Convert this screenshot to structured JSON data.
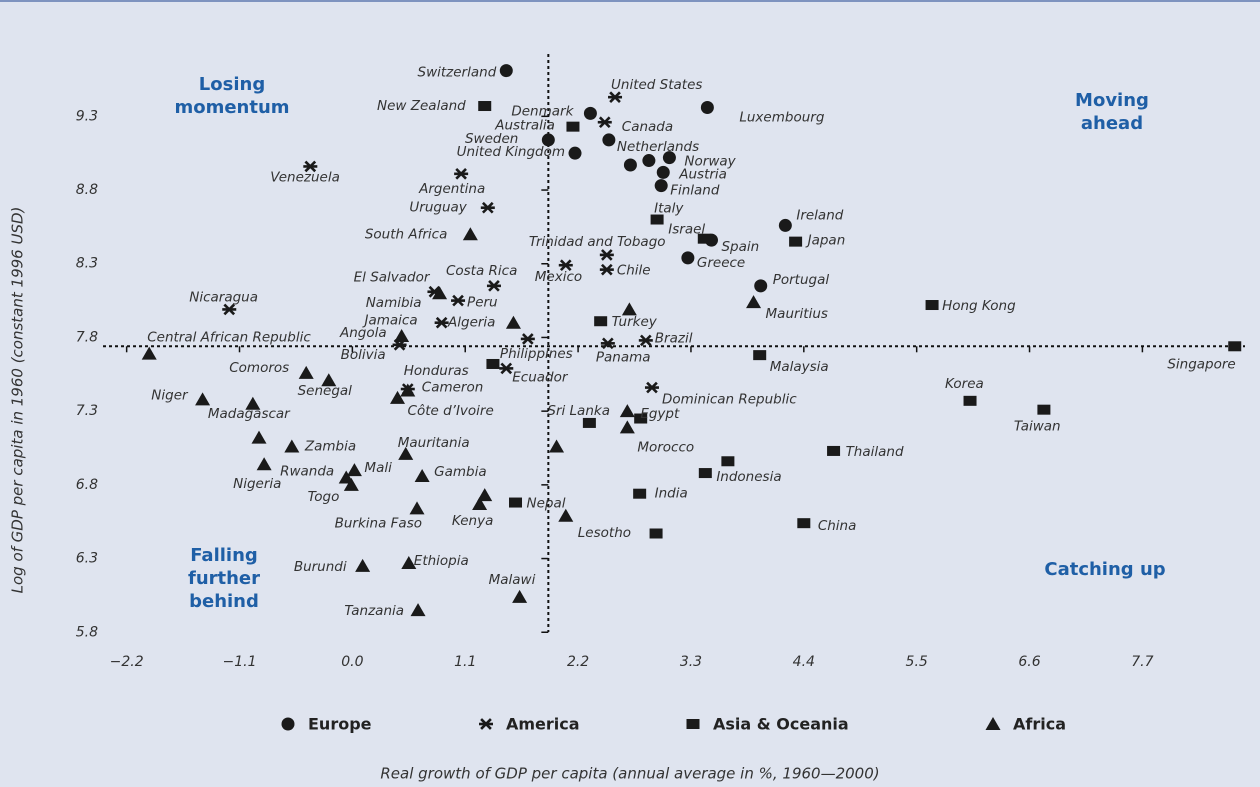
{
  "chart_data": {
    "type": "scatter",
    "xlabel": "Real growth of GDP per capita (annual average in %, 1960—2000)",
    "ylabel": "Log of GDP per capita in 1960 (constant 1996 USD)",
    "xlim": [
      -2.45,
      8.7
    ],
    "ylim": [
      5.7,
      9.75
    ],
    "xticks": [
      {
        "value": -2.2,
        "label": "−2.2"
      },
      {
        "value": -1.1,
        "label": "−1.1"
      },
      {
        "value": 0,
        "label": "0.0"
      },
      1.1,
      2.2,
      3.3,
      4.4,
      5.5,
      6.6,
      7.7
    ],
    "yticks": [
      5.8,
      6.3,
      6.8,
      7.3,
      7.8,
      8.3,
      8.8,
      9.3
    ],
    "reference_lines": {
      "x": 1.91,
      "y": 7.74
    },
    "annotations": [
      {
        "text": [
          "Losing",
          "momentum"
        ]
      },
      {
        "text": [
          "Moving",
          "ahead"
        ]
      },
      {
        "text": [
          "Falling",
          "further",
          "behind"
        ]
      },
      {
        "text": [
          "Catching up"
        ]
      }
    ],
    "series": [
      {
        "name": "Europe",
        "marker": "circle",
        "color": "#1a1a1a",
        "labels": [
          "Switzerland",
          "Luxembourg",
          "Denmark",
          "Sweden",
          "United Kingdom",
          "Netherlands",
          "Norway",
          "Austria",
          "Finland",
          null,
          null,
          "Ireland",
          "Spain",
          "Greece",
          "Portugal"
        ],
        "x": [
          1.5,
          3.46,
          2.32,
          1.91,
          2.17,
          2.5,
          3.09,
          3.03,
          3.01,
          2.71,
          2.89,
          4.22,
          3.5,
          3.27,
          3.98
        ],
        "values": [
          9.61,
          9.36,
          9.32,
          9.14,
          9.05,
          9.14,
          9.02,
          8.92,
          8.83,
          8.97,
          9.0,
          8.56,
          8.46,
          8.34,
          8.15
        ]
      },
      {
        "name": "America",
        "marker": "asterisk",
        "color": "#1a1a1a",
        "labels": [
          "United States",
          "Canada",
          "Venezuela",
          "Argentina",
          "Uruguay",
          "Trinidad and Tobago",
          "Mexico",
          "Chile",
          "Costa Rica",
          "El Salvador",
          "Peru",
          "Nicaragua",
          "Jamaica",
          null,
          "Bolivia",
          "Panama",
          "Brazil",
          "Ecuador",
          "Honduras",
          "Dominican Republic"
        ],
        "x": [
          2.56,
          2.46,
          -0.41,
          1.06,
          1.32,
          2.48,
          2.08,
          2.48,
          1.38,
          0.8,
          1.03,
          -1.2,
          0.87,
          1.71,
          0.46,
          2.49,
          2.86,
          1.5,
          0.54,
          2.92
        ],
        "values": [
          9.43,
          9.26,
          8.96,
          8.91,
          8.68,
          8.36,
          8.29,
          8.26,
          8.15,
          8.11,
          8.05,
          7.99,
          7.9,
          7.79,
          7.75,
          7.76,
          7.78,
          7.59,
          7.45,
          7.46
        ]
      },
      {
        "name": "Asia & Oceania",
        "marker": "square",
        "color": "#1a1a1a",
        "labels": [
          "New Zealand",
          "Australia",
          "Italy",
          "Israel",
          "Japan",
          "Hong Kong",
          "Turkey",
          "Malaysia",
          "Singapore",
          "Philippines",
          "Korea",
          "Taiwan",
          "Sri Lanka",
          null,
          "Thailand",
          null,
          "Indonesia",
          "India",
          "Nepal",
          "China",
          null
        ],
        "x": [
          1.29,
          2.15,
          2.97,
          3.43,
          4.32,
          5.65,
          2.42,
          3.97,
          8.6,
          1.37,
          6.02,
          6.74,
          2.31,
          2.81,
          4.69,
          3.66,
          3.44,
          2.8,
          1.59,
          4.4,
          2.96
        ],
        "values": [
          9.37,
          9.23,
          8.6,
          8.47,
          8.45,
          8.02,
          7.91,
          7.68,
          7.74,
          7.62,
          7.37,
          7.31,
          7.22,
          7.25,
          7.03,
          6.96,
          6.88,
          6.74,
          6.68,
          6.54,
          6.47
        ]
      },
      {
        "name": "Africa",
        "marker": "triangle",
        "color": "#1a1a1a",
        "labels": [
          "South Africa",
          "Namibia",
          "Algeria",
          "Mauritius",
          null,
          "Angola",
          "Central African Republic",
          "Comoros",
          "Senegal",
          "Niger",
          "Madagascar",
          "Cameron",
          "Côte d’Ivoire",
          null,
          "Zambia",
          "Nigeria",
          "Rwanda",
          "Mali",
          "Togo",
          "Mauritania",
          "Gambia",
          "Burkina Faso",
          "Kenya",
          null,
          null,
          "Egypt",
          "Morocco",
          "Lesotho",
          "Burundi",
          "Ethiopia",
          "Malawi",
          "Tanzania"
        ],
        "x": [
          1.15,
          0.85,
          1.57,
          3.91,
          2.7,
          0.48,
          -1.98,
          -0.45,
          -0.23,
          -1.46,
          -0.97,
          0.54,
          0.44,
          -0.91,
          -0.59,
          -0.86,
          -0.06,
          0.02,
          -0.01,
          0.52,
          0.68,
          0.63,
          1.24,
          1.29,
          1.99,
          2.68,
          2.68,
          2.08,
          0.1,
          0.55,
          1.63,
          0.64
        ],
        "values": [
          8.5,
          8.1,
          7.9,
          8.04,
          7.99,
          7.81,
          7.69,
          7.56,
          7.51,
          7.38,
          7.35,
          7.44,
          7.39,
          7.12,
          7.06,
          6.94,
          6.85,
          6.9,
          6.8,
          7.01,
          6.86,
          6.64,
          6.67,
          6.73,
          7.06,
          7.3,
          7.19,
          6.59,
          6.25,
          6.27,
          6.04,
          5.95
        ]
      }
    ]
  }
}
